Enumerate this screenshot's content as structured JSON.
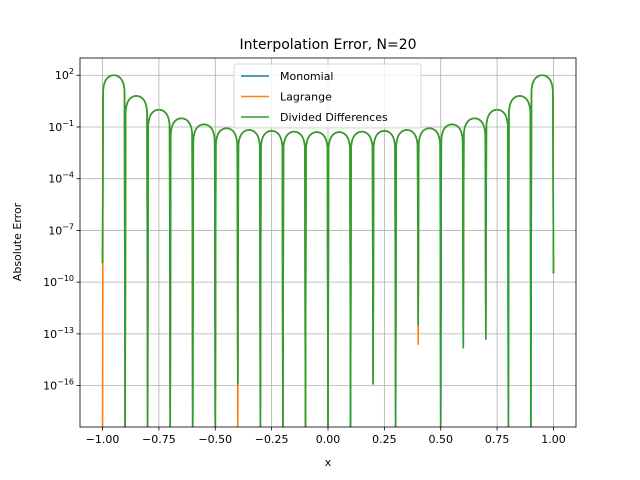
{
  "chart_data": {
    "type": "line",
    "title": "Interpolation Error, N=20",
    "xlabel": "x",
    "ylabel": "Absolute Error",
    "xlim": [
      -1.1,
      1.1
    ],
    "ylim_log10": [
      -18.4,
      3.0
    ],
    "yscale": "log",
    "grid": true,
    "legend_position": "top-center",
    "xticks": [
      {
        "v": -1.0,
        "label": "−1.00"
      },
      {
        "v": -0.75,
        "label": "−0.75"
      },
      {
        "v": -0.5,
        "label": "−0.50"
      },
      {
        "v": -0.25,
        "label": "−0.25"
      },
      {
        "v": 0.0,
        "label": "0.00"
      },
      {
        "v": 0.25,
        "label": "0.25"
      },
      {
        "v": 0.5,
        "label": "0.50"
      },
      {
        "v": 0.75,
        "label": "0.75"
      },
      {
        "v": 1.0,
        "label": "1.00"
      }
    ],
    "yticks": [
      {
        "v": 2,
        "base": "10",
        "exp": "2"
      },
      {
        "v": -1,
        "base": "10",
        "exp": "−1"
      },
      {
        "v": -4,
        "base": "10",
        "exp": "−4"
      },
      {
        "v": -7,
        "base": "10",
        "exp": "−7"
      },
      {
        "v": -10,
        "base": "10",
        "exp": "−10"
      },
      {
        "v": -13,
        "base": "10",
        "exp": "−13"
      },
      {
        "v": -16,
        "base": "10",
        "exp": "−16"
      }
    ],
    "nodes": [
      -1.0,
      -0.9,
      -0.8,
      -0.7,
      -0.6,
      -0.5,
      -0.4,
      -0.3,
      -0.2,
      -0.1,
      0.0,
      0.1,
      0.2,
      0.3,
      0.4,
      0.5,
      0.6,
      0.7,
      0.8,
      0.9,
      1.0
    ],
    "envelope_log10": [
      {
        "x": -1.0,
        "y": 2.7
      },
      {
        "x": -0.9,
        "y": 1.3
      },
      {
        "x": -0.8,
        "y": 0.3
      },
      {
        "x": -0.7,
        "y": -0.3
      },
      {
        "x": -0.6,
        "y": -0.7
      },
      {
        "x": -0.5,
        "y": -1.0
      },
      {
        "x": -0.4,
        "y": -1.15
      },
      {
        "x": -0.3,
        "y": -1.2
      },
      {
        "x": -0.2,
        "y": -1.25
      },
      {
        "x": -0.1,
        "y": -1.3
      },
      {
        "x": 0.0,
        "y": -1.3
      },
      {
        "x": 0.1,
        "y": -1.3
      },
      {
        "x": 0.2,
        "y": -1.25
      },
      {
        "x": 0.3,
        "y": -1.2
      },
      {
        "x": 0.4,
        "y": -1.15
      },
      {
        "x": 0.5,
        "y": -1.0
      },
      {
        "x": 0.6,
        "y": -0.7
      },
      {
        "x": 0.7,
        "y": -0.3
      },
      {
        "x": 0.8,
        "y": 0.3
      },
      {
        "x": 0.9,
        "y": 1.3
      },
      {
        "x": 1.0,
        "y": 2.7
      }
    ],
    "node_values_log10": {
      "monomial": [
        -8.9,
        -19,
        -19,
        -19,
        -19,
        -19,
        -15.9,
        -19,
        -19,
        -19,
        -19,
        -19,
        -15.9,
        -19,
        -12.5,
        -19,
        -13.8,
        -13.3,
        -19,
        -19,
        -9.5
      ],
      "lagrange": [
        -19,
        -19,
        -19,
        -17.5,
        -19,
        -19,
        -19,
        -17.2,
        -19,
        -19,
        -19,
        -16.5,
        -15.8,
        -15.6,
        -13.6,
        -13.0,
        -13.0,
        -13.0,
        -10.0,
        -10.0,
        -9.5
      ],
      "divided_differences": [
        -8.9,
        -19,
        -19,
        -19,
        -19,
        -19,
        -15.9,
        -19,
        -19,
        -19,
        -19,
        -19,
        -15.9,
        -19,
        -12.5,
        -19,
        -13.8,
        -13.3,
        -19,
        -19,
        -9.5
      ]
    },
    "series": [
      {
        "key": "monomial",
        "name": "Monomial",
        "color": "#1f77b4"
      },
      {
        "key": "lagrange",
        "name": "Lagrange",
        "color": "#ff7f0e"
      },
      {
        "key": "divided_differences",
        "name": "Divided Differences",
        "color": "#2ca02c"
      }
    ]
  }
}
